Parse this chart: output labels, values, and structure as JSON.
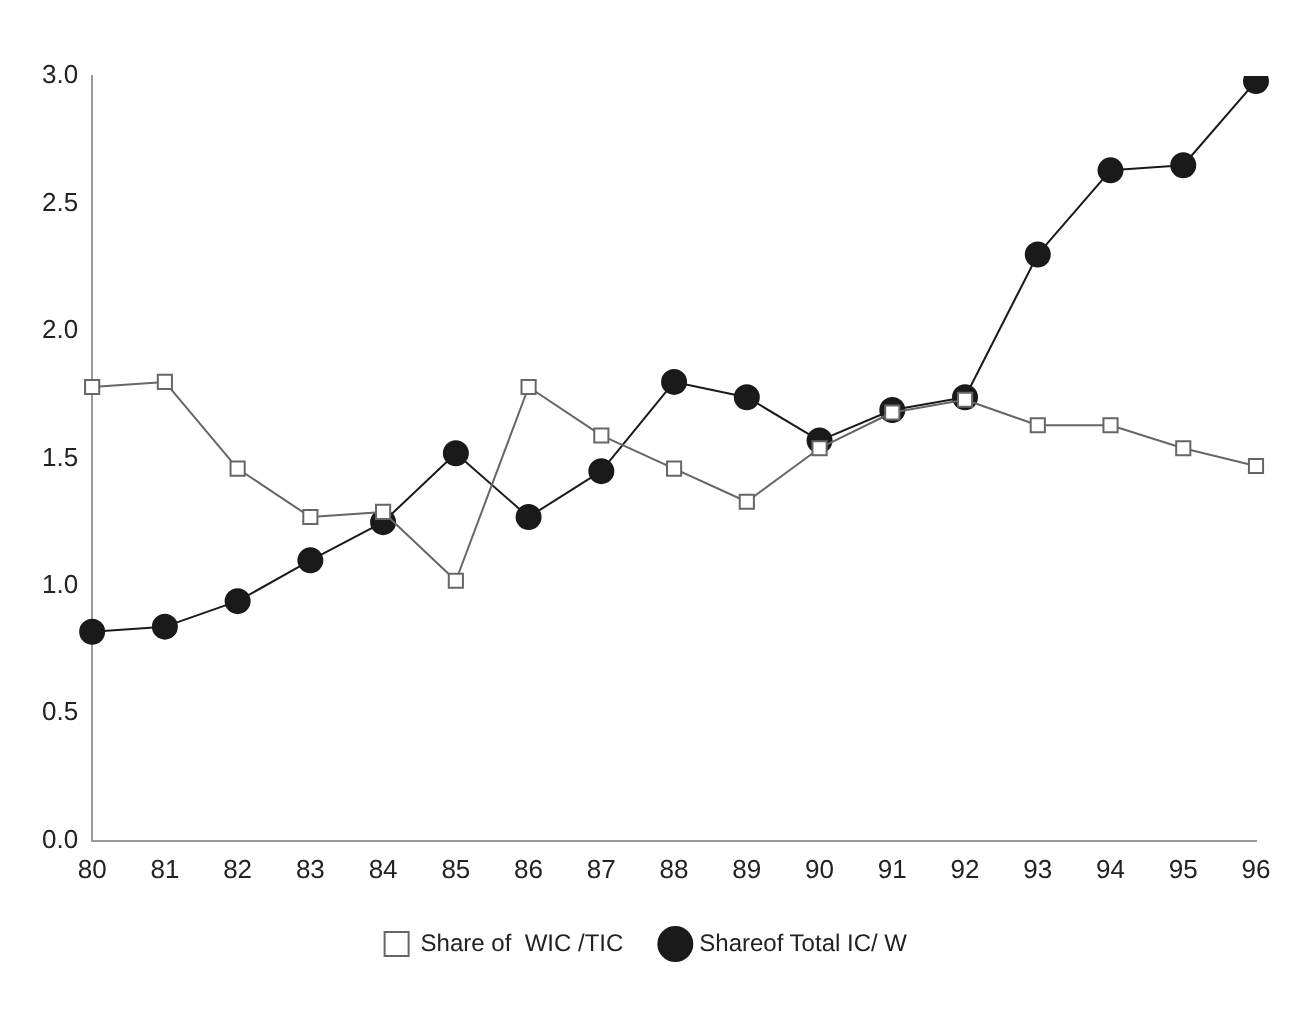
{
  "chart_data": {
    "type": "line",
    "categories": [
      "80",
      "81",
      "82",
      "83",
      "84",
      "85",
      "86",
      "87",
      "88",
      "89",
      "90",
      "91",
      "92",
      "93",
      "94",
      "95",
      "96"
    ],
    "series": [
      {
        "name": "Shareof Total IC/ W",
        "color": "#1a1a1a",
        "marker": "circle",
        "values": [
          0.82,
          0.84,
          0.94,
          1.1,
          1.25,
          1.52,
          1.27,
          1.45,
          1.8,
          1.74,
          1.57,
          1.69,
          1.74,
          2.3,
          2.63,
          2.65,
          2.98
        ]
      },
      {
        "name": "Share of  WIC /TIC",
        "color": "#666666",
        "marker": "square",
        "values": [
          1.78,
          1.8,
          1.46,
          1.27,
          1.29,
          1.02,
          1.78,
          1.59,
          1.46,
          1.33,
          1.54,
          1.68,
          1.73,
          1.63,
          1.63,
          1.54,
          1.47
        ]
      }
    ],
    "ylim": [
      0,
      3
    ],
    "yticks": [
      {
        "value": 0,
        "label": "0.0"
      },
      {
        "value": 0.5,
        "label": "0.5"
      },
      {
        "value": 1,
        "label": "1.0"
      },
      {
        "value": 1.5,
        "label": "1.5"
      },
      {
        "value": 2,
        "label": "2.0"
      },
      {
        "value": 2.5,
        "label": "2.5"
      },
      {
        "value": 3,
        "label": "3.0"
      }
    ],
    "grid": false,
    "legend": "bottom"
  }
}
